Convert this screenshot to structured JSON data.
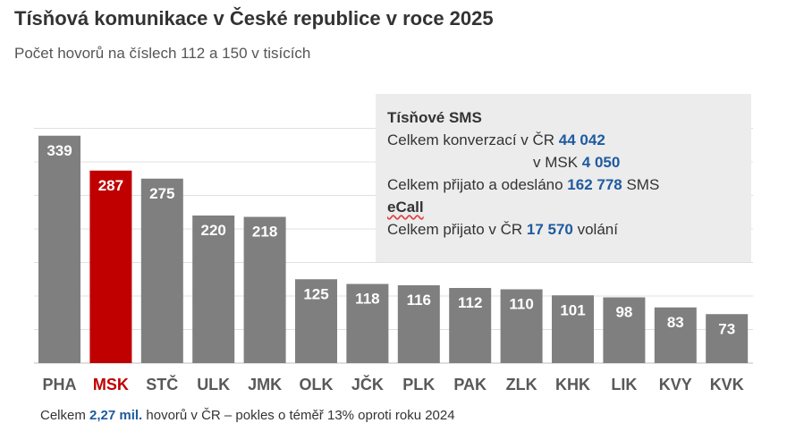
{
  "title": "Tísňová komunikace v České republice v roce 2025",
  "subtitle": "Počet hovorů na číslech 112 a 150 v tisících",
  "colors": {
    "bar": "#7f7f7f",
    "highlight": "#c00000",
    "highlight_label": "#c00000",
    "label": "#595959"
  },
  "chart_data": {
    "type": "bar",
    "categories": [
      "PHA",
      "MSK",
      "STČ",
      "ULK",
      "JMK",
      "OLK",
      "JČK",
      "PLK",
      "PAK",
      "ZLK",
      "KHK",
      "LIK",
      "KVY",
      "KVK"
    ],
    "values": [
      339,
      287,
      275,
      220,
      218,
      125,
      118,
      116,
      112,
      110,
      101,
      98,
      83,
      73
    ],
    "highlight": "MSK",
    "ylim": [
      0,
      350
    ],
    "grid": true
  },
  "info": {
    "sms_heading": "Tísňové SMS",
    "conv_prefix": "Celkem konverzací v ČR ",
    "conv_cr": "44 042",
    "msk_prefix": "v MSK ",
    "conv_msk": "4 050",
    "sent_prefix": "Celkem přijato a odesláno ",
    "sent_value": "162 778",
    "sent_suffix": " SMS",
    "ecall_heading": "eCall",
    "ecall_prefix": "Celkem přijato v ČR ",
    "ecall_value": "17 570",
    "ecall_suffix": " volání"
  },
  "footer": {
    "prefix": "Celkem ",
    "value": "2,27 mil.",
    "suffix": " hovorů v ČR – pokles o téměř 13% oproti roku 2024"
  }
}
